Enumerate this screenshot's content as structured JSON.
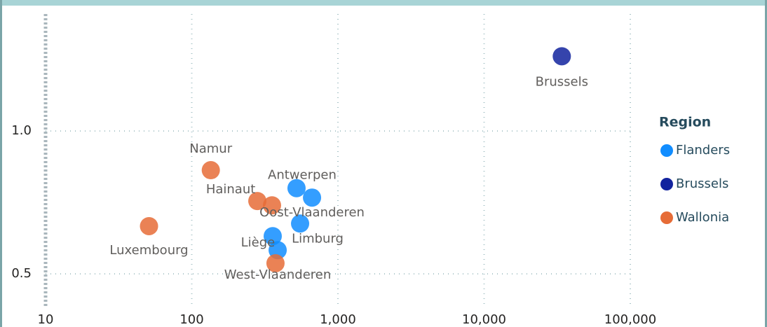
{
  "chart_data": {
    "type": "scatter",
    "x_log": true,
    "grid": true,
    "legend_title": "Region",
    "legend_position": "right",
    "xlim": [
      10,
      100000
    ],
    "ylim": [
      0.38,
      1.41
    ],
    "xticks": [
      10,
      100,
      {
        "value": 1000,
        "label": "1,000"
      },
      {
        "value": 10000,
        "label": "10,000"
      },
      {
        "value": 100000,
        "label": "100,000"
      }
    ],
    "yticks": [
      0.5,
      {
        "value": 1.0,
        "label": "1.0"
      }
    ],
    "series": [
      {
        "name": "Flanders",
        "color": "#118dff",
        "x": [
          521,
          665,
          551,
          358,
          387
        ],
        "values": [
          0.8,
          0.767,
          0.676,
          0.632,
          0.583
        ],
        "labels": [
          "Antwerpen",
          "Oost-Vlaanderen",
          "Limburg",
          null,
          "West-Vlaanderen"
        ]
      },
      {
        "name": "Brussels",
        "color": "#12239e",
        "x": [
          34000
        ],
        "values": [
          1.262
        ],
        "labels": [
          "Brussels"
        ]
      },
      {
        "name": "Wallonia",
        "color": "#e66c37",
        "x": [
          135,
          51,
          281,
          354,
          374
        ],
        "values": [
          0.863,
          0.667,
          0.755,
          0.74,
          0.537
        ],
        "labels": [
          "Namur",
          "Luxembourg",
          "Hainaut",
          "Liège",
          null
        ]
      }
    ]
  }
}
